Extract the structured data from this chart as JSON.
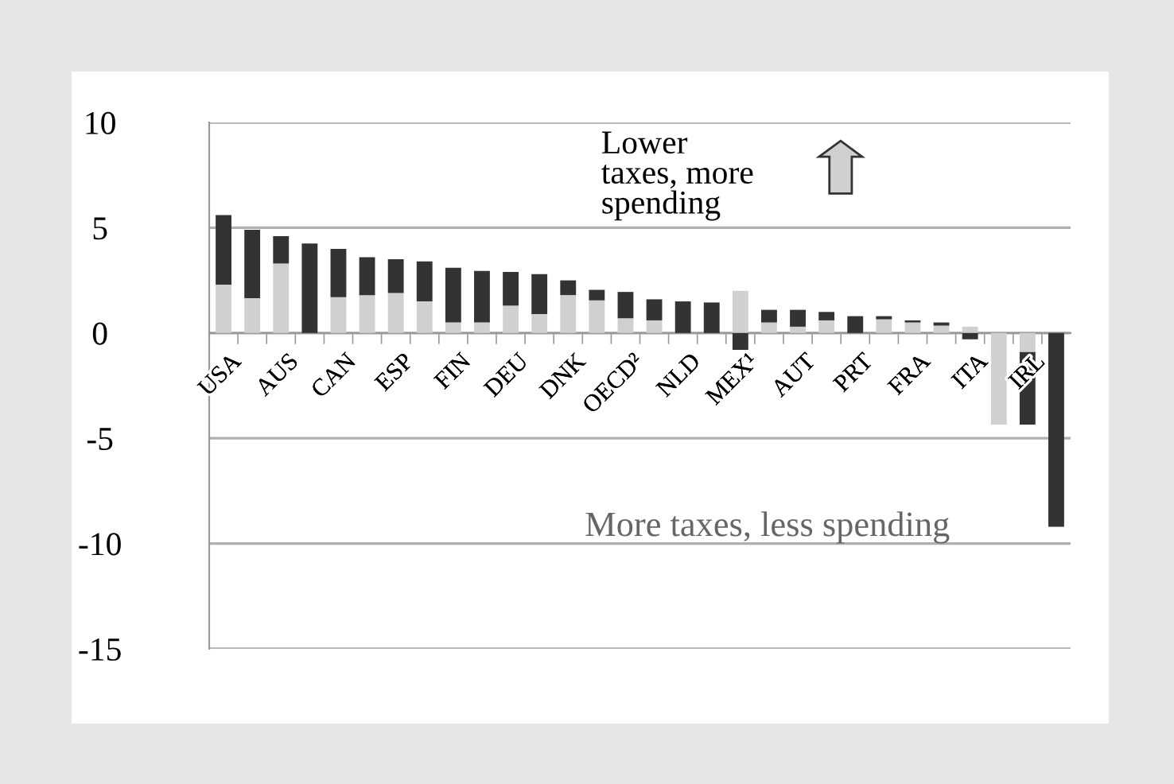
{
  "chart_data": {
    "type": "bar",
    "stacked": true,
    "categories": [
      "USA",
      null,
      "AUS",
      null,
      "CAN",
      null,
      "ESP",
      null,
      "FIN",
      null,
      "DEU",
      null,
      "DNK",
      null,
      "OECD²",
      null,
      "NLD",
      null,
      "MEX¹",
      null,
      "AUT",
      null,
      "PRT",
      null,
      "FRA",
      null,
      "ITA",
      null,
      "IRL",
      null
    ],
    "series": [
      {
        "color": "#d0d0d0",
        "values": [
          2.3,
          1.65,
          3.3,
          0,
          1.7,
          1.8,
          1.9,
          1.5,
          0.5,
          0.5,
          1.3,
          0.9,
          1.8,
          1.55,
          0.7,
          0.6,
          0,
          0,
          2.0,
          0.5,
          0.3,
          0.6,
          0,
          0.65,
          0.5,
          0.35,
          0.3,
          -4.35,
          -0.9,
          0
        ]
      },
      {
        "color": "#333333",
        "values": [
          3.3,
          3.25,
          1.3,
          4.25,
          2.3,
          1.8,
          1.6,
          1.9,
          2.6,
          2.45,
          1.6,
          1.9,
          0.7,
          0.5,
          1.25,
          1.0,
          1.5,
          1.45,
          -0.8,
          0.6,
          0.8,
          0.4,
          0.8,
          0.15,
          0.1,
          0.15,
          -0.3,
          0,
          -3.45,
          -9.2
        ]
      }
    ],
    "ylim": [
      -15,
      10
    ],
    "yticks": [
      -15,
      -10,
      -5,
      0,
      5,
      10
    ],
    "grid": "y",
    "annotations": [
      "Lower\ntaxes, more\nspending",
      "More taxes, less spending"
    ]
  }
}
